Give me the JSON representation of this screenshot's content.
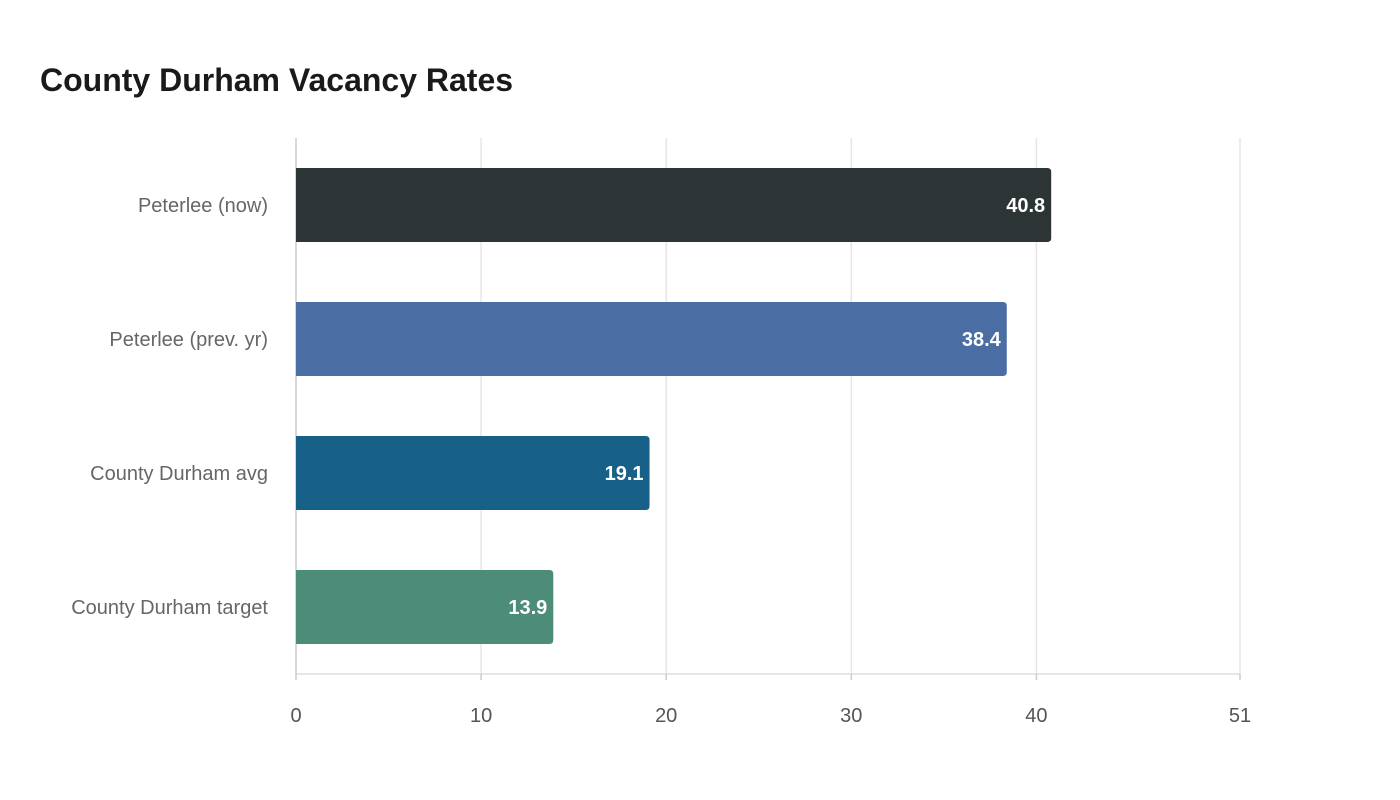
{
  "chart_data": {
    "type": "bar",
    "orientation": "horizontal",
    "title": "County Durham Vacancy Rates",
    "xlabel": "",
    "ylabel": "",
    "categories": [
      "Peterlee (now)",
      "Peterlee (prev. yr)",
      "County Durham avg",
      "County Durham target"
    ],
    "values": [
      40.8,
      38.4,
      19.1,
      13.9
    ],
    "colors": [
      "#2d3436",
      "#4a6da3",
      "#176087",
      "#4e8c7a"
    ],
    "xlim": [
      0,
      51
    ],
    "xticks": [
      0,
      10,
      20,
      30,
      40,
      51
    ],
    "grid": true
  }
}
